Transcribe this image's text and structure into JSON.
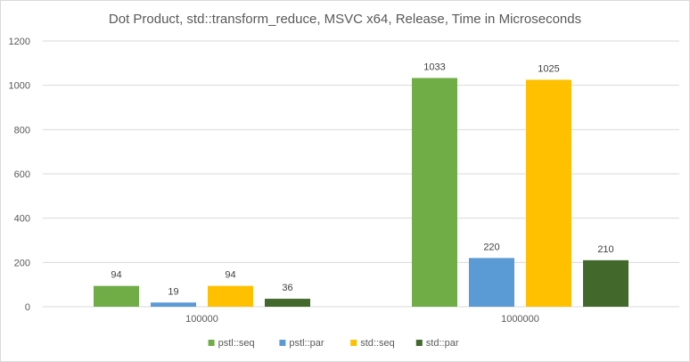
{
  "chart_data": {
    "type": "bar",
    "title": "Dot Product,  std::transform_reduce,  MSVC x64, Release, Time in Microseconds",
    "xlabel": "",
    "ylabel": "",
    "categories": [
      "100000",
      "1000000"
    ],
    "series": [
      {
        "name": "pstl::seq",
        "values": [
          94,
          1033
        ],
        "color": "#70ad47"
      },
      {
        "name": "pstl::par",
        "values": [
          19,
          220
        ],
        "color": "#5b9bd5"
      },
      {
        "name": "std::seq",
        "values": [
          94,
          1025
        ],
        "color": "#ffc000"
      },
      {
        "name": "std::par",
        "values": [
          36,
          210
        ],
        "color": "#43682b"
      }
    ],
    "ylim": [
      0,
      1200
    ],
    "yticks": [
      0,
      200,
      400,
      600,
      800,
      1000,
      1200
    ],
    "grid": true,
    "legend_position": "bottom",
    "data_labels": true
  }
}
